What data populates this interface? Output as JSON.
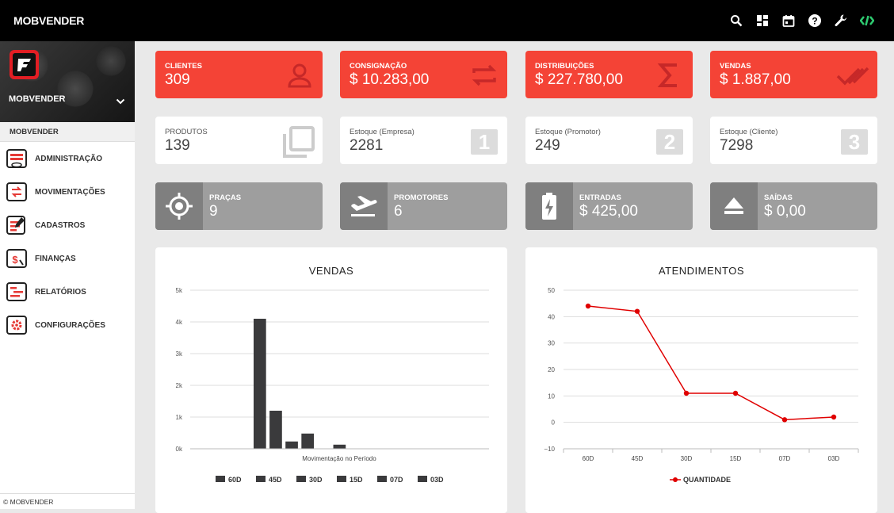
{
  "app": {
    "title": "MOBVENDER"
  },
  "topbar": {
    "icons": [
      "search-icon",
      "dashboard-icon",
      "calendar-icon",
      "help-icon",
      "wrench-icon",
      "code-icon"
    ]
  },
  "sidebar": {
    "profile_name": "MOBVENDER",
    "section": "MOBVENDER",
    "items": [
      {
        "label": "ADMINISTRAÇÃO",
        "icon": "admin-icon"
      },
      {
        "label": "MOVIMENTAÇÕES",
        "icon": "movements-icon"
      },
      {
        "label": "CADASTROS",
        "icon": "register-icon"
      },
      {
        "label": "FINANÇAS",
        "icon": "finance-icon"
      },
      {
        "label": "RELATÓRIOS",
        "icon": "reports-icon"
      },
      {
        "label": "CONFIGURAÇÕES",
        "icon": "settings-icon"
      }
    ],
    "footer": "© MOBVENDER"
  },
  "colors": {
    "accent": "#f44336",
    "sidebar_icon": "#e53935",
    "gray_card": "#9e9e9e",
    "bar": "#3a3a3c",
    "line": "#e00000"
  },
  "cards_red": [
    {
      "label": "CLIENTES",
      "value": "309",
      "icon": "person-icon"
    },
    {
      "label": "CONSIGNAÇÃO",
      "value": "$ 10.283,00",
      "icon": "repeat-icon"
    },
    {
      "label": "DISTRIBUIÇÕES",
      "value": "$ 227.780,00",
      "icon": "sigma-icon"
    },
    {
      "label": "VENDAS",
      "value": "$ 1.887,00",
      "icon": "double-check-icon"
    }
  ],
  "cards_white": [
    {
      "label": "PRODUTOS",
      "value": "139",
      "icon": "copy-icon"
    },
    {
      "label": "Estoque (Empresa)",
      "value": "2281",
      "badge": "1"
    },
    {
      "label": "Estoque (Promotor)",
      "value": "249",
      "badge": "2"
    },
    {
      "label": "Estoque (Cliente)",
      "value": "7298",
      "badge": "3"
    }
  ],
  "cards_gray": [
    {
      "label": "PRAÇAS",
      "value": "9",
      "icon": "target-icon"
    },
    {
      "label": "PROMOTORES",
      "value": "6",
      "icon": "flight-takeoff-icon"
    },
    {
      "label": "ENTRADAS",
      "value": "$ 425,00",
      "icon": "battery-charging-icon"
    },
    {
      "label": "SAÍDAS",
      "value": "$ 0,00",
      "icon": "eject-icon"
    }
  ],
  "chart_data": [
    {
      "type": "bar",
      "title": "VENDAS",
      "xlabel": "Movimentação no Período",
      "ylabel": "",
      "ylim": [
        0,
        5000
      ],
      "yticks": [
        "0k",
        "1k",
        "2k",
        "3k",
        "4k",
        "5k"
      ],
      "categories": [
        "60D",
        "45D",
        "30D",
        "15D",
        "07D",
        "03D"
      ],
      "values": [
        4100,
        1200,
        230,
        480,
        0,
        130
      ],
      "legend": [
        "60D",
        "45D",
        "30D",
        "15D",
        "07D",
        "03D"
      ],
      "legend_position": "bottom"
    },
    {
      "type": "line",
      "title": "ATENDIMENTOS",
      "ylim": [
        -10,
        50
      ],
      "yticks": [
        "−10",
        "0",
        "10",
        "20",
        "30",
        "40",
        "50"
      ],
      "categories": [
        "60D",
        "45D",
        "30D",
        "15D",
        "07D",
        "03D"
      ],
      "series": [
        {
          "name": "QUANTIDADE",
          "values": [
            44,
            42,
            11,
            11,
            1,
            2
          ]
        }
      ],
      "legend_position": "bottom"
    }
  ]
}
